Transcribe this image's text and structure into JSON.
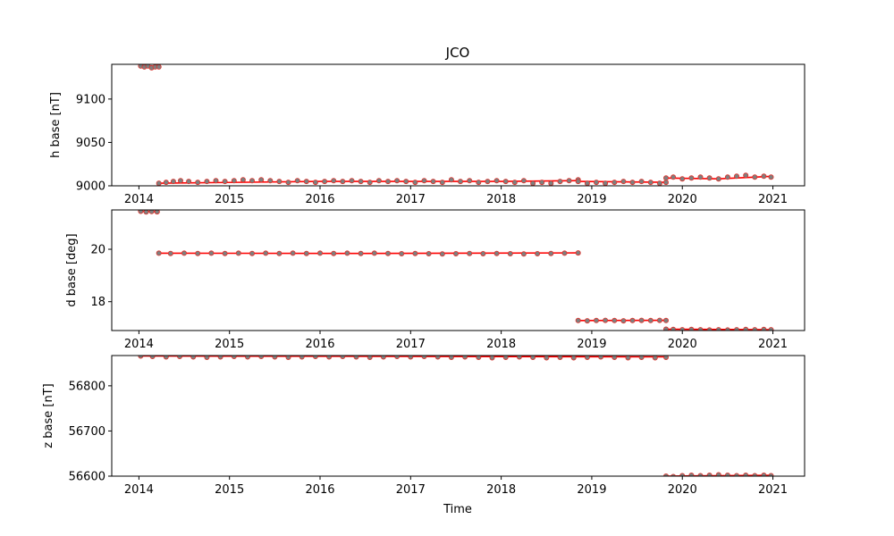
{
  "colors": {
    "points": "#7f7f7f",
    "fit_line": "#ff0000",
    "point_edge": "#e0322b"
  },
  "chart_data": [
    {
      "type": "scatter",
      "title": "JCO",
      "xlabel": "",
      "ylabel": "h base [nT]",
      "xlim": [
        2013.7,
        2021.35
      ],
      "ylim": [
        9000,
        9140
      ],
      "xticks": [
        2014,
        2015,
        2016,
        2017,
        2018,
        2019,
        2020,
        2021
      ],
      "xtick_labels": [
        "2014",
        "2015",
        "2016",
        "2017",
        "2018",
        "2019",
        "2020",
        "2021"
      ],
      "yticks": [
        9000,
        9050,
        9100
      ],
      "ytick_labels": [
        "9000",
        "9050",
        "9100"
      ],
      "series": [
        {
          "x": [
            2014.02,
            2014.06,
            2014.1,
            2014.14,
            2014.18,
            2014.22
          ],
          "y": [
            9138,
            9137,
            9138,
            9136,
            9137,
            9137
          ]
        },
        {
          "x": [
            2014.22,
            2014.3,
            2014.38,
            2014.46,
            2014.55,
            2014.65,
            2014.75,
            2014.85,
            2014.95,
            2015.05,
            2015.15,
            2015.25,
            2015.35,
            2015.45,
            2015.55,
            2015.65,
            2015.75,
            2015.85,
            2015.95,
            2016.05,
            2016.15,
            2016.25,
            2016.35,
            2016.45,
            2016.55,
            2016.65,
            2016.75,
            2016.85,
            2016.95,
            2017.05,
            2017.15,
            2017.25,
            2017.35,
            2017.45,
            2017.55,
            2017.65,
            2017.75,
            2017.85,
            2017.95,
            2018.05,
            2018.15,
            2018.25,
            2018.35,
            2018.45,
            2018.55,
            2018.65,
            2018.75,
            2018.85
          ],
          "y": [
            9003,
            9004,
            9005,
            9006,
            9005,
            9004,
            9005,
            9006,
            9005,
            9006,
            9007,
            9006,
            9007,
            9006,
            9005,
            9004,
            9006,
            9005,
            9004,
            9005,
            9006,
            9005,
            9006,
            9005,
            9004,
            9006,
            9005,
            9006,
            9005,
            9004,
            9006,
            9005,
            9004,
            9007,
            9005,
            9006,
            9004,
            9005,
            9006,
            9005,
            9004,
            9006,
            9003,
            9004,
            9003,
            9005,
            9006,
            9007
          ]
        },
        {
          "x": [
            2018.85,
            2018.95,
            2019.05,
            2019.15,
            2019.25,
            2019.35,
            2019.45,
            2019.55,
            2019.65,
            2019.75,
            2019.82
          ],
          "y": [
            9005,
            9003,
            9004,
            9003,
            9004,
            9005,
            9004,
            9005,
            9004,
            9003,
            9004
          ]
        },
        {
          "x": [
            2019.82,
            2019.9,
            2020.0,
            2020.1,
            2020.2,
            2020.3,
            2020.4,
            2020.5,
            2020.6,
            2020.7,
            2020.8,
            2020.9,
            2020.98
          ],
          "y": [
            9009,
            9010,
            9008,
            9009,
            9010,
            9009,
            9008,
            9010,
            9011,
            9012,
            9010,
            9011,
            9010
          ]
        }
      ],
      "fits": [
        {
          "x": [
            2014.0,
            2014.23
          ],
          "y": [
            9138,
            9136
          ]
        },
        {
          "x": [
            2014.23,
            2016.0,
            2018.0,
            2018.85
          ],
          "y": [
            9003,
            9005,
            9005,
            9006
          ]
        },
        {
          "x": [
            2018.85,
            2019.82
          ],
          "y": [
            9005,
            9004
          ]
        },
        {
          "x": [
            2019.82,
            2020.4,
            2021.0
          ],
          "y": [
            9009,
            9008,
            9011
          ]
        }
      ]
    },
    {
      "type": "scatter",
      "title": "",
      "xlabel": "",
      "ylabel": "d base [deg]",
      "xlim": [
        2013.7,
        2021.35
      ],
      "ylim": [
        16.9,
        21.5
      ],
      "xticks": [
        2014,
        2015,
        2016,
        2017,
        2018,
        2019,
        2020,
        2021
      ],
      "xtick_labels": [
        "2014",
        "2015",
        "2016",
        "2017",
        "2018",
        "2019",
        "2020",
        "2021"
      ],
      "yticks": [
        18,
        20
      ],
      "ytick_labels": [
        "18",
        "20"
      ],
      "series": [
        {
          "x": [
            2014.02,
            2014.08,
            2014.14,
            2014.2
          ],
          "y": [
            21.45,
            21.42,
            21.44,
            21.43
          ]
        },
        {
          "x": [
            2014.22,
            2014.35,
            2014.5,
            2014.65,
            2014.8,
            2014.95,
            2015.1,
            2015.25,
            2015.4,
            2015.55,
            2015.7,
            2015.85,
            2016.0,
            2016.15,
            2016.3,
            2016.45,
            2016.6,
            2016.75,
            2016.9,
            2017.05,
            2017.2,
            2017.35,
            2017.5,
            2017.65,
            2017.8,
            2017.95,
            2018.1,
            2018.25,
            2018.4,
            2018.55,
            2018.7,
            2018.85
          ],
          "y": [
            19.85,
            19.84,
            19.85,
            19.84,
            19.85,
            19.84,
            19.85,
            19.84,
            19.85,
            19.84,
            19.85,
            19.84,
            19.85,
            19.84,
            19.85,
            19.84,
            19.85,
            19.84,
            19.83,
            19.84,
            19.83,
            19.82,
            19.83,
            19.84,
            19.83,
            19.84,
            19.83,
            19.82,
            19.83,
            19.84,
            19.85,
            19.86
          ]
        },
        {
          "x": [
            2018.85,
            2018.95,
            2019.05,
            2019.15,
            2019.25,
            2019.35,
            2019.45,
            2019.55,
            2019.65,
            2019.75,
            2019.82
          ],
          "y": [
            17.28,
            17.27,
            17.28,
            17.29,
            17.28,
            17.27,
            17.28,
            17.29,
            17.28,
            17.29,
            17.28
          ]
        },
        {
          "x": [
            2019.82,
            2019.9,
            2020.0,
            2020.1,
            2020.2,
            2020.3,
            2020.4,
            2020.5,
            2020.6,
            2020.7,
            2020.8,
            2020.9,
            2020.98
          ],
          "y": [
            16.95,
            16.94,
            16.93,
            16.94,
            16.93,
            16.92,
            16.93,
            16.92,
            16.93,
            16.94,
            16.93,
            16.94,
            16.93
          ]
        }
      ],
      "fits": [
        {
          "x": [
            2014.0,
            2014.23
          ],
          "y": [
            21.45,
            21.43
          ]
        },
        {
          "x": [
            2014.23,
            2016.5,
            2018.85
          ],
          "y": [
            19.85,
            19.84,
            19.86
          ]
        },
        {
          "x": [
            2018.85,
            2019.82
          ],
          "y": [
            17.28,
            17.29
          ]
        },
        {
          "x": [
            2019.82,
            2021.0
          ],
          "y": [
            16.95,
            16.93
          ]
        }
      ]
    },
    {
      "type": "scatter",
      "title": "",
      "xlabel": "Time",
      "ylabel": "z base [nT]",
      "xlim": [
        2013.7,
        2021.35
      ],
      "ylim": [
        56600,
        56867
      ],
      "xticks": [
        2014,
        2015,
        2016,
        2017,
        2018,
        2019,
        2020,
        2021
      ],
      "xtick_labels": [
        "2014",
        "2015",
        "2016",
        "2017",
        "2018",
        "2019",
        "2020",
        "2021"
      ],
      "yticks": [
        56600,
        56700,
        56800
      ],
      "ytick_labels": [
        "56600",
        "56700",
        "56800"
      ],
      "series": [
        {
          "x": [
            2014.02,
            2014.15,
            2014.3,
            2014.45,
            2014.6,
            2014.75,
            2014.9,
            2015.05,
            2015.2,
            2015.35,
            2015.5,
            2015.65,
            2015.8,
            2015.95,
            2016.1,
            2016.25,
            2016.4,
            2016.55,
            2016.7,
            2016.85,
            2017.0,
            2017.15,
            2017.3,
            2017.45,
            2017.6,
            2017.75,
            2017.9,
            2018.05,
            2018.2,
            2018.35,
            2018.5,
            2018.65,
            2018.8,
            2018.95,
            2019.1,
            2019.25,
            2019.4,
            2019.55,
            2019.7,
            2019.82
          ],
          "y": [
            56866,
            56865,
            56864,
            56865,
            56864,
            56863,
            56864,
            56865,
            56864,
            56865,
            56864,
            56863,
            56864,
            56865,
            56864,
            56865,
            56864,
            56863,
            56864,
            56865,
            56864,
            56865,
            56864,
            56863,
            56864,
            56863,
            56862,
            56863,
            56864,
            56863,
            56862,
            56863,
            56862,
            56863,
            56864,
            56863,
            56862,
            56863,
            56862,
            56863
          ]
        },
        {
          "x": [
            2019.82,
            2019.9,
            2020.0,
            2020.1,
            2020.2,
            2020.3,
            2020.4,
            2020.5,
            2020.6,
            2020.7,
            2020.8,
            2020.9,
            2020.98
          ],
          "y": [
            56600,
            56599,
            56601,
            56602,
            56601,
            56602,
            56603,
            56602,
            56601,
            56602,
            56601,
            56602,
            56601
          ]
        }
      ],
      "fits": [
        {
          "x": [
            2014.0,
            2017.0,
            2019.82
          ],
          "y": [
            56866,
            56865,
            56864
          ]
        },
        {
          "x": [
            2019.82,
            2021.0
          ],
          "y": [
            56600,
            56602
          ]
        }
      ]
    }
  ]
}
